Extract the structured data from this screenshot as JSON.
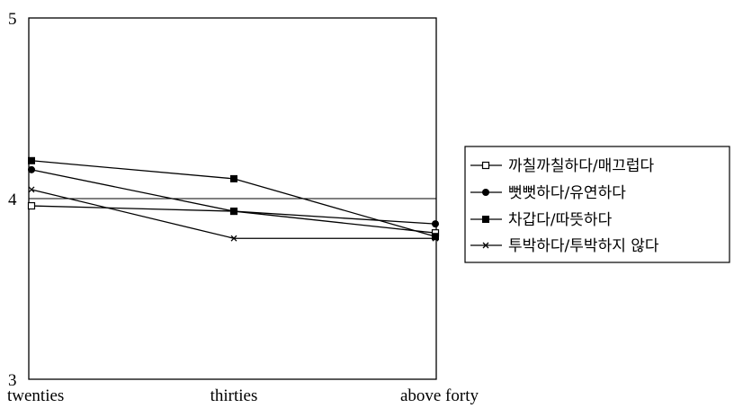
{
  "chart_data": {
    "type": "line",
    "title": "",
    "xlabel": "",
    "ylabel": "",
    "categories": [
      "twenties",
      "thirties",
      "above forty"
    ],
    "ylim": [
      3,
      5
    ],
    "yticks": [
      3,
      4,
      5
    ],
    "grid": false,
    "reference_line": 4,
    "legend_position": "right",
    "series": [
      {
        "name": "까칠까칠하다/매끄럽다",
        "marker": "open-square",
        "values": [
          3.96,
          3.93,
          3.81
        ]
      },
      {
        "name": "뻣뻣하다/유연하다",
        "marker": "filled-circle",
        "values": [
          4.16,
          3.93,
          3.86
        ]
      },
      {
        "name": "차갑다/따뜻하다",
        "marker": "filled-square",
        "values": [
          4.21,
          4.11,
          3.79
        ]
      },
      {
        "name": "투박하다/투박하지 않다",
        "marker": "cross",
        "values": [
          4.05,
          3.78,
          3.78
        ]
      }
    ]
  }
}
